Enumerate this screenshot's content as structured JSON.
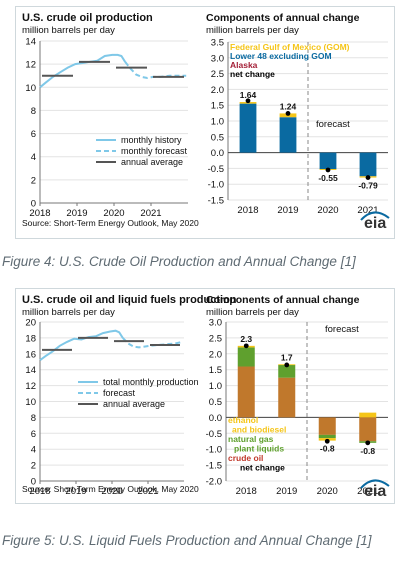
{
  "figures": [
    {
      "caption": "Figure 4: U.S. Crude Oil Production and Annual Change [1]",
      "source": "Source: Short-Term Energy Outlook, May 2020",
      "logo": "eia",
      "left_chart": {
        "title": "U.S. crude oil production",
        "unit": "million barrels per day",
        "ylim": [
          0,
          14
        ],
        "yticks": [
          "0",
          "2",
          "4",
          "6",
          "8",
          "10",
          "12",
          "14"
        ],
        "xticks": [
          "2018",
          "2019",
          "2020",
          "2021"
        ],
        "legend": [
          "monthly history",
          "monthly forecast",
          "annual average"
        ],
        "history": [
          [
            2018.0,
            10.0
          ],
          [
            2018.15,
            10.4
          ],
          [
            2018.35,
            10.9
          ],
          [
            2018.55,
            11.3
          ],
          [
            2018.75,
            11.7
          ],
          [
            2018.95,
            12.0
          ],
          [
            2019.15,
            12.1
          ],
          [
            2019.35,
            12.2
          ],
          [
            2019.55,
            12.3
          ],
          [
            2019.75,
            12.7
          ],
          [
            2019.95,
            12.8
          ],
          [
            2020.1,
            12.8
          ],
          [
            2020.2,
            12.7
          ],
          [
            2020.3,
            12.2
          ]
        ],
        "forecast": [
          [
            2020.3,
            12.2
          ],
          [
            2020.45,
            11.6
          ],
          [
            2020.6,
            11.1
          ],
          [
            2020.75,
            10.9
          ],
          [
            2020.9,
            10.8
          ],
          [
            2021.05,
            10.9
          ],
          [
            2021.25,
            10.9
          ],
          [
            2021.5,
            11.0
          ],
          [
            2021.75,
            11.0
          ],
          [
            2021.95,
            11.0
          ]
        ],
        "annual_average": [
          [
            2018,
            11.0
          ],
          [
            2019,
            12.2
          ],
          [
            2020,
            11.7
          ],
          [
            2021,
            10.9
          ]
        ]
      },
      "right_chart": {
        "title": "Components of annual change",
        "unit": "million barrels per day",
        "ylim": [
          -1.5,
          3.5
        ],
        "yticks": [
          "3.5",
          "3.0",
          "2.5",
          "2.0",
          "1.5",
          "1.0",
          "0.5",
          "0.0",
          "-0.5",
          "-1.0",
          "-1.5"
        ],
        "categories": [
          "2018",
          "2019",
          "2020",
          "2021"
        ],
        "legend": [
          {
            "label": "Federal Gulf of Mexico (GOM)",
            "color": "#f5c518"
          },
          {
            "label": "Lower 48 excluding GOM",
            "color": "#0a6aa1"
          },
          {
            "label": "Alaska",
            "color": "#a31e36"
          },
          {
            "label": "net change",
            "color": "#000000"
          }
        ],
        "forecast_label": "forecast",
        "series": [
          {
            "name": "Lower 48 excluding GOM",
            "values": [
              1.55,
              1.12,
              -0.52,
              -0.75
            ]
          },
          {
            "name": "Federal Gulf of Mexico (GOM)",
            "values": [
              0.05,
              0.12,
              -0.03,
              -0.04
            ]
          },
          {
            "name": "Alaska",
            "values": [
              0.0,
              0.0,
              0.0,
              0.0
            ]
          }
        ],
        "net": [
          1.64,
          1.24,
          -0.55,
          -0.79
        ],
        "net_labels": [
          "1.64",
          "1.24",
          "-0.55",
          "-0.79"
        ]
      }
    },
    {
      "caption": "Figure 5: U.S. Liquid Fuels Production and Annual Change [1]",
      "source": "Source: Short-Term Energy Outlook, May 2020",
      "logo": "eia",
      "left_chart": {
        "title": "U.S. crude oil and liquid fuels production",
        "unit": "million barrels per day",
        "ylim": [
          0,
          20
        ],
        "yticks": [
          "0",
          "2",
          "4",
          "6",
          "8",
          "10",
          "12",
          "14",
          "16",
          "18",
          "20"
        ],
        "xticks": [
          "2018",
          "2019",
          "2020",
          "2021"
        ],
        "legend": [
          "total monthly production",
          "forecast",
          "annual average"
        ],
        "history": [
          [
            2018.0,
            15.2
          ],
          [
            2018.15,
            15.7
          ],
          [
            2018.35,
            16.3
          ],
          [
            2018.55,
            17.0
          ],
          [
            2018.75,
            17.5
          ],
          [
            2018.95,
            17.9
          ],
          [
            2019.15,
            17.8
          ],
          [
            2019.35,
            18.1
          ],
          [
            2019.55,
            18.2
          ],
          [
            2019.75,
            18.6
          ],
          [
            2019.95,
            18.8
          ],
          [
            2020.1,
            18.9
          ],
          [
            2020.2,
            18.7
          ],
          [
            2020.3,
            18.0
          ]
        ],
        "forecast": [
          [
            2020.3,
            18.0
          ],
          [
            2020.45,
            17.3
          ],
          [
            2020.6,
            16.9
          ],
          [
            2020.75,
            16.8
          ],
          [
            2020.9,
            16.9
          ],
          [
            2021.05,
            17.0
          ],
          [
            2021.25,
            17.1
          ],
          [
            2021.5,
            17.2
          ],
          [
            2021.75,
            17.3
          ],
          [
            2021.95,
            17.5
          ]
        ],
        "annual_average": [
          [
            2018,
            16.5
          ],
          [
            2019,
            18.0
          ],
          [
            2020,
            17.6
          ],
          [
            2021,
            17.1
          ]
        ]
      },
      "right_chart": {
        "title": "Components of annual change",
        "unit": "million barrels per day",
        "ylim": [
          -2.0,
          3.0
        ],
        "yticks": [
          "3.0",
          "2.5",
          "2.0",
          "1.5",
          "1.0",
          "0.5",
          "0.0",
          "-0.5",
          "-1.0",
          "-1.5",
          "-2.0"
        ],
        "categories": [
          "2018",
          "2019",
          "2020",
          "2021"
        ],
        "legend": [
          {
            "label": "ethanol",
            "color": "#f5c518"
          },
          {
            "label": "and biodiesel",
            "color": "#f5c518"
          },
          {
            "label": "natural gas",
            "color": "#5fa02e"
          },
          {
            "label": "plant liquids",
            "color": "#5fa02e"
          },
          {
            "label": "crude oil",
            "color": "#c0392b"
          },
          {
            "label": "net change",
            "color": "#000000"
          }
        ],
        "forecast_label": "forecast",
        "series": [
          {
            "name": "crude oil",
            "values": [
              1.6,
              1.25,
              -0.55,
              -0.75
            ]
          },
          {
            "name": "natural gas plant liquids",
            "values": [
              0.6,
              0.4,
              -0.1,
              -0.05
            ]
          },
          {
            "name": "ethanol and biodiesel",
            "values": [
              0.05,
              0.02,
              -0.08,
              0.15
            ]
          }
        ],
        "net": [
          2.25,
          1.65,
          -0.75,
          -0.8
        ],
        "net_labels": [
          "2.3",
          "1.7",
          "-0.8",
          "-0.8"
        ]
      }
    }
  ],
  "chart_data": [
    {
      "type": "line",
      "title": "U.S. crude oil production",
      "ylabel": "million barrels per day",
      "ylim": [
        0,
        14
      ],
      "series": [
        {
          "name": "monthly history"
        },
        {
          "name": "monthly forecast"
        },
        {
          "name": "annual average",
          "x": [
            "2018",
            "2019",
            "2020",
            "2021"
          ],
          "values": [
            11.0,
            12.2,
            11.7,
            10.9
          ]
        }
      ]
    },
    {
      "type": "bar",
      "title": "Components of annual change",
      "ylabel": "million barrels per day",
      "ylim": [
        -1.5,
        3.5
      ],
      "categories": [
        "2018",
        "2019",
        "2020",
        "2021"
      ],
      "series": [
        {
          "name": "Lower 48 excluding GOM",
          "values": [
            1.55,
            1.12,
            -0.52,
            -0.75
          ]
        },
        {
          "name": "Federal Gulf of Mexico (GOM)",
          "values": [
            0.05,
            0.12,
            -0.03,
            -0.04
          ]
        },
        {
          "name": "net change",
          "values": [
            1.64,
            1.24,
            -0.55,
            -0.79
          ]
        }
      ]
    },
    {
      "type": "line",
      "title": "U.S. crude oil and liquid fuels production",
      "ylabel": "million barrels per day",
      "ylim": [
        0,
        20
      ],
      "series": [
        {
          "name": "total monthly production"
        },
        {
          "name": "forecast"
        },
        {
          "name": "annual average",
          "x": [
            "2018",
            "2019",
            "2020",
            "2021"
          ],
          "values": [
            16.5,
            18.0,
            17.6,
            17.1
          ]
        }
      ]
    },
    {
      "type": "bar",
      "title": "Components of annual change",
      "ylabel": "million barrels per day",
      "ylim": [
        -2.0,
        3.0
      ],
      "categories": [
        "2018",
        "2019",
        "2020",
        "2021"
      ],
      "series": [
        {
          "name": "crude oil",
          "values": [
            1.6,
            1.25,
            -0.55,
            -0.75
          ]
        },
        {
          "name": "natural gas plant liquids",
          "values": [
            0.6,
            0.4,
            -0.1,
            -0.05
          ]
        },
        {
          "name": "ethanol and biodiesel",
          "values": [
            0.05,
            0.02,
            -0.08,
            0.15
          ]
        },
        {
          "name": "net change",
          "values": [
            2.3,
            1.7,
            -0.8,
            -0.8
          ]
        }
      ]
    }
  ]
}
